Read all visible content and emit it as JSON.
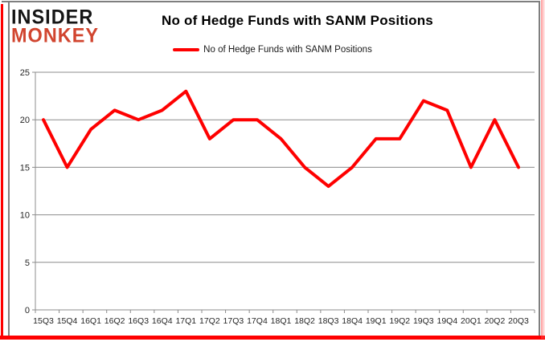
{
  "logo": {
    "line1": "INSIDER",
    "line2": "MONKEY"
  },
  "header": {
    "title": "No of Hedge Funds with SANM Positions"
  },
  "legend": {
    "label": "No of Hedge Funds with SANM Positions"
  },
  "colors": {
    "series": "#fe0000",
    "gridline": "#8c8c8c",
    "axis_line": "#8c8c8c",
    "axis_text": "#262626",
    "frame_border": "#7f7f7f",
    "logo_black": "#151515",
    "logo_red": "#d1452f",
    "accent_red": "#fe0000"
  },
  "chart_data": {
    "type": "line",
    "title": "No of Hedge Funds with SANM Positions",
    "categories": [
      "15Q3",
      "15Q4",
      "16Q1",
      "16Q2",
      "16Q3",
      "16Q4",
      "17Q1",
      "17Q2",
      "17Q3",
      "17Q4",
      "18Q1",
      "18Q2",
      "18Q3",
      "18Q4",
      "19Q1",
      "19Q2",
      "19Q3",
      "19Q4",
      "20Q1",
      "20Q2",
      "20Q3"
    ],
    "series": [
      {
        "name": "No of Hedge Funds with SANM Positions",
        "color": "#fe0000",
        "values": [
          20,
          15,
          19,
          21,
          20,
          21,
          23,
          18,
          20,
          20,
          18,
          15,
          13,
          15,
          18,
          18,
          22,
          21,
          15,
          20,
          15
        ]
      }
    ],
    "xlabel": "",
    "ylabel": "",
    "ylim": [
      0,
      25
    ],
    "yticks": [
      0,
      5,
      10,
      15,
      20,
      25
    ],
    "grid": true,
    "legend_position": "top"
  }
}
